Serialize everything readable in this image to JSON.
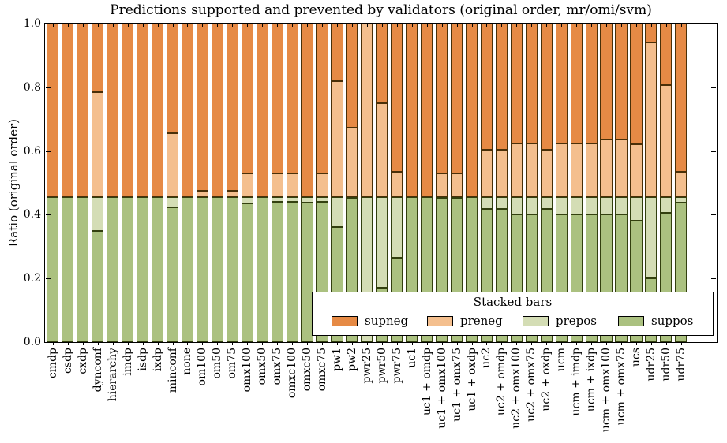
{
  "title": "Predictions supported and prevented by validators (original order, mr/omi/svm)",
  "y_axis": {
    "label": "Ratio (original order)",
    "ticks": [
      0.0,
      0.2,
      0.4,
      0.6,
      0.8,
      1.0
    ]
  },
  "legend": {
    "title": "Stacked bars",
    "entries": [
      {
        "label": "supneg",
        "color": "#e68a45"
      },
      {
        "label": "preneg",
        "color": "#f4bf8e"
      },
      {
        "label": "prepos",
        "color": "#d4ddb5"
      },
      {
        "label": "suppos",
        "color": "#abc180"
      }
    ]
  },
  "chart_data": {
    "type": "bar",
    "stacked": true,
    "title": "Predictions supported and prevented by validators (original order, mr/omi/svm)",
    "xlabel": "",
    "ylabel": "Ratio (original order)",
    "ylim": [
      0.0,
      1.0
    ],
    "grid": false,
    "legend_position": "lower right inside",
    "categories": [
      "cmdp",
      "csdp",
      "cxdp",
      "dynconf",
      "hierarchy",
      "imdp",
      "isdp",
      "ixdp",
      "minconf",
      "none",
      "om100",
      "om50",
      "om75",
      "omx100",
      "omx50",
      "omx75",
      "omxc100",
      "omxc50",
      "omxc75",
      "pw1",
      "pw2",
      "pwr25",
      "pwr50",
      "pwr75",
      "uc1",
      "uc1 + omdp",
      "uc1 + omx100",
      "uc1 + omx75",
      "uc1 + oxdp",
      "uc2",
      "uc2 + omdp",
      "uc2 + omx100",
      "uc2 + omx75",
      "uc2 + oxdp",
      "ucm",
      "ucm + imdp",
      "ucm + ixdp",
      "ucm + omx100",
      "ucm + omx75",
      "ucs",
      "udr25",
      "udr50",
      "udr75"
    ],
    "series": [
      {
        "name": "suppos",
        "color": "#abc180",
        "values": [
          0.455,
          0.455,
          0.455,
          0.35,
          0.455,
          0.455,
          0.455,
          0.455,
          0.423,
          0.455,
          0.455,
          0.455,
          0.455,
          0.436,
          0.455,
          0.44,
          0.44,
          0.438,
          0.44,
          0.361,
          0.45,
          0.0,
          0.17,
          0.265,
          0.455,
          0.455,
          0.45,
          0.45,
          0.455,
          0.418,
          0.418,
          0.4,
          0.4,
          0.418,
          0.402,
          0.402,
          0.402,
          0.402,
          0.402,
          0.381,
          0.2,
          0.405,
          0.438
        ]
      },
      {
        "name": "prepos",
        "color": "#d4ddb5",
        "values": [
          0.0,
          0.0,
          0.0,
          0.105,
          0.0,
          0.0,
          0.0,
          0.0,
          0.032,
          0.0,
          0.0,
          0.0,
          0.0,
          0.019,
          0.0,
          0.015,
          0.015,
          0.017,
          0.015,
          0.094,
          0.005,
          0.455,
          0.285,
          0.19,
          0.0,
          0.0,
          0.005,
          0.005,
          0.0,
          0.037,
          0.037,
          0.055,
          0.055,
          0.037,
          0.053,
          0.053,
          0.053,
          0.053,
          0.053,
          0.074,
          0.255,
          0.05,
          0.017
        ]
      },
      {
        "name": "preneg",
        "color": "#f4bf8e",
        "values": [
          0.0,
          0.0,
          0.0,
          0.33,
          0.0,
          0.0,
          0.0,
          0.0,
          0.201,
          0.0,
          0.021,
          0.0,
          0.021,
          0.075,
          0.0,
          0.075,
          0.075,
          0.0,
          0.075,
          0.364,
          0.219,
          0.545,
          0.296,
          0.079,
          0.0,
          0.0,
          0.075,
          0.075,
          0.0,
          0.149,
          0.149,
          0.168,
          0.168,
          0.149,
          0.168,
          0.168,
          0.168,
          0.182,
          0.182,
          0.166,
          0.485,
          0.351,
          0.079
        ]
      },
      {
        "name": "supneg",
        "color": "#e68a45",
        "values": [
          0.545,
          0.545,
          0.545,
          0.215,
          0.545,
          0.545,
          0.545,
          0.545,
          0.344,
          0.545,
          0.524,
          0.545,
          0.524,
          0.47,
          0.545,
          0.47,
          0.47,
          0.545,
          0.47,
          0.181,
          0.326,
          0.0,
          0.249,
          0.466,
          0.545,
          0.545,
          0.47,
          0.47,
          0.545,
          0.396,
          0.396,
          0.377,
          0.377,
          0.396,
          0.377,
          0.377,
          0.377,
          0.363,
          0.363,
          0.379,
          0.06,
          0.194,
          0.466
        ]
      }
    ]
  }
}
